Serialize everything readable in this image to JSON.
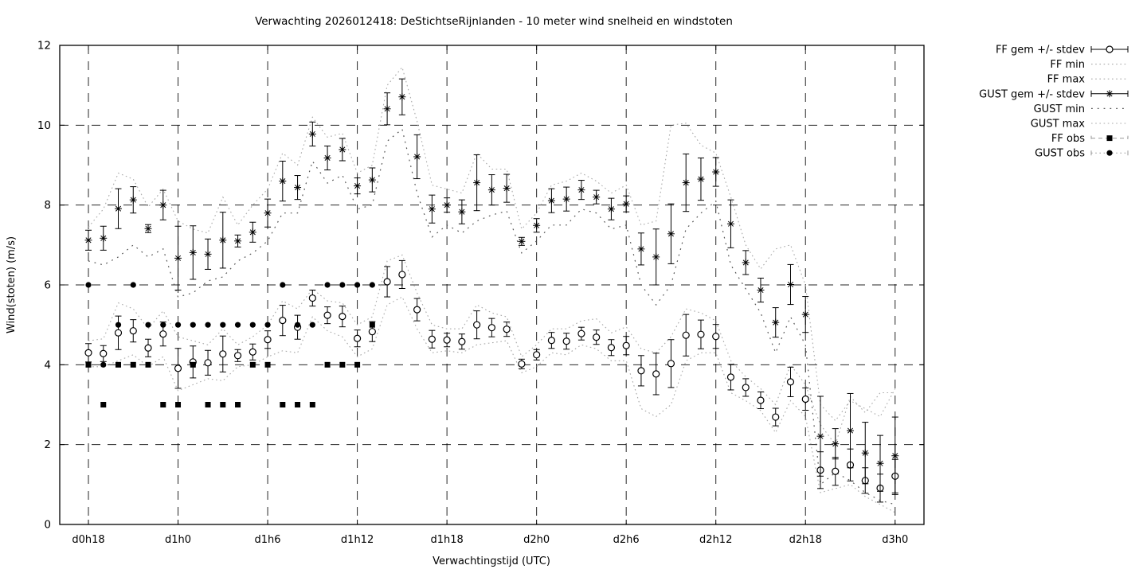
{
  "title": "Verwachting 2026012418: DeStichtseRijnlanden - 10 meter wind snelheid en windstoten",
  "xlabel": "Verwachtingstijd (UTC)",
  "ylabel": "Wind(stoten) (m/s)",
  "colors": {
    "foreground": "#000000",
    "envelope_fine_dotted": "#a8a8a8",
    "envelope_sparse_dotted": "#555555",
    "obs_legend_line": "#999999",
    "background": "#ffffff"
  },
  "legend": [
    {
      "label": "FF gem +/- stdev",
      "type": "errorbar-circle"
    },
    {
      "label": "FF min",
      "type": "dotted-fine"
    },
    {
      "label": "FF max",
      "type": "dotted-fine"
    },
    {
      "label": "GUST gem +/- stdev",
      "type": "errorbar-asterisk"
    },
    {
      "label": "GUST min",
      "type": "dotted-sparse"
    },
    {
      "label": "GUST max",
      "type": "dotted-fine"
    },
    {
      "label": "FF obs",
      "type": "dashed-square"
    },
    {
      "label": "GUST obs",
      "type": "dotted-bullet"
    }
  ],
  "chart_data": {
    "type": "line",
    "subtype": "errorbars-with-envelopes-and-observations",
    "ylim": [
      0,
      12
    ],
    "y_ticks": [
      0,
      2,
      4,
      6,
      8,
      10,
      12
    ],
    "grid": true,
    "legend_position": "outside-top-right",
    "x_ticks": [
      {
        "hour": 18,
        "label": "d0h18"
      },
      {
        "hour": 24,
        "label": "d1h0"
      },
      {
        "hour": 30,
        "label": "d1h6"
      },
      {
        "hour": 36,
        "label": "d1h12"
      },
      {
        "hour": 42,
        "label": "d1h18"
      },
      {
        "hour": 48,
        "label": "d2h0"
      },
      {
        "hour": 54,
        "label": "d2h6"
      },
      {
        "hour": 60,
        "label": "d2h12"
      },
      {
        "hour": 66,
        "label": "d2h18"
      },
      {
        "hour": 72,
        "label": "d3h0"
      }
    ],
    "x_hours": [
      18,
      19,
      20,
      21,
      22,
      23,
      24,
      25,
      26,
      27,
      28,
      29,
      30,
      31,
      32,
      33,
      34,
      35,
      36,
      37,
      38,
      39,
      40,
      41,
      42,
      43,
      44,
      45,
      46,
      47,
      48,
      49,
      50,
      51,
      52,
      53,
      54,
      55,
      56,
      57,
      58,
      59,
      60,
      61,
      62,
      63,
      64,
      65,
      66,
      67,
      68,
      69,
      70,
      71,
      72
    ],
    "series": [
      {
        "name": "FF gem",
        "style": "errorbar-circle",
        "values": [
          4.3,
          4.28,
          4.8,
          4.85,
          4.42,
          4.77,
          3.91,
          4.07,
          4.05,
          4.27,
          4.23,
          4.32,
          4.63,
          5.11,
          4.94,
          5.67,
          5.24,
          5.21,
          4.66,
          4.83,
          6.08,
          6.26,
          5.38,
          4.64,
          4.62,
          4.58,
          5.0,
          4.93,
          4.89,
          4.02,
          4.25,
          4.61,
          4.59,
          4.78,
          4.69,
          4.43,
          4.48,
          3.85,
          3.77,
          4.03,
          4.74,
          4.76,
          4.71,
          3.69,
          3.43,
          3.11,
          2.69,
          3.57,
          3.14,
          1.36,
          1.33,
          1.49,
          1.1,
          0.91,
          1.21
        ],
        "stdev": [
          0.23,
          0.2,
          0.42,
          0.28,
          0.22,
          0.3,
          0.5,
          0.4,
          0.31,
          0.45,
          0.15,
          0.2,
          0.22,
          0.38,
          0.3,
          0.2,
          0.21,
          0.26,
          0.21,
          0.25,
          0.38,
          0.35,
          0.28,
          0.22,
          0.17,
          0.19,
          0.35,
          0.23,
          0.18,
          0.12,
          0.13,
          0.2,
          0.2,
          0.16,
          0.18,
          0.2,
          0.23,
          0.38,
          0.52,
          0.6,
          0.52,
          0.36,
          0.3,
          0.32,
          0.22,
          0.21,
          0.22,
          0.37,
          0.28,
          0.46,
          0.35,
          0.4,
          0.32,
          0.35,
          0.42
        ]
      },
      {
        "name": "FF min",
        "style": "dotted-fine",
        "values": [
          3.95,
          3.95,
          4.1,
          4.25,
          3.95,
          4.2,
          3.35,
          3.5,
          3.65,
          3.6,
          3.95,
          4.0,
          4.2,
          4.35,
          4.3,
          5.2,
          4.85,
          4.7,
          4.2,
          4.4,
          5.5,
          5.7,
          4.9,
          4.3,
          4.35,
          4.3,
          4.5,
          4.55,
          4.6,
          3.8,
          3.95,
          4.3,
          4.25,
          4.5,
          4.4,
          4.1,
          4.1,
          2.9,
          2.7,
          3.0,
          4.1,
          4.3,
          4.3,
          3.3,
          3.1,
          2.85,
          2.3,
          3.1,
          2.7,
          0.8,
          0.9,
          1.0,
          0.7,
          0.5,
          0.3
        ]
      },
      {
        "name": "FF max",
        "style": "dotted-fine",
        "values": [
          4.6,
          4.65,
          5.55,
          5.4,
          4.9,
          5.35,
          4.7,
          4.6,
          4.5,
          4.9,
          4.5,
          4.7,
          5.0,
          5.6,
          5.4,
          5.9,
          5.6,
          5.55,
          5.0,
          5.2,
          6.6,
          6.75,
          5.8,
          5.0,
          4.9,
          4.9,
          5.5,
          5.3,
          5.2,
          4.2,
          4.5,
          4.9,
          4.9,
          5.1,
          5.15,
          4.8,
          4.95,
          4.4,
          4.3,
          4.7,
          5.4,
          5.3,
          5.1,
          4.1,
          3.7,
          3.4,
          3.0,
          4.0,
          3.5,
          2.5,
          2.0,
          3.2,
          2.8,
          3.3,
          3.3
        ]
      },
      {
        "name": "GUST gem",
        "style": "errorbar-asterisk",
        "values": [
          7.12,
          7.17,
          7.91,
          8.13,
          7.41,
          8.0,
          6.67,
          6.81,
          6.77,
          7.12,
          7.1,
          7.32,
          7.8,
          8.6,
          8.44,
          9.78,
          9.18,
          9.39,
          8.48,
          8.63,
          10.41,
          10.71,
          9.21,
          7.9,
          8.0,
          7.83,
          8.56,
          8.38,
          8.42,
          7.09,
          7.49,
          8.11,
          8.15,
          8.38,
          8.2,
          7.9,
          8.03,
          6.9,
          6.7,
          7.28,
          8.56,
          8.65,
          8.83,
          7.53,
          6.56,
          5.87,
          5.06,
          6.01,
          5.26,
          2.21,
          2.02,
          2.35,
          1.79,
          1.53,
          1.72
        ],
        "stdev": [
          0.25,
          0.3,
          0.5,
          0.33,
          0.1,
          0.37,
          0.8,
          0.67,
          0.38,
          0.7,
          0.15,
          0.25,
          0.35,
          0.5,
          0.3,
          0.3,
          0.3,
          0.28,
          0.2,
          0.3,
          0.4,
          0.45,
          0.55,
          0.35,
          0.18,
          0.3,
          0.7,
          0.38,
          0.35,
          0.1,
          0.17,
          0.3,
          0.3,
          0.24,
          0.17,
          0.27,
          0.2,
          0.4,
          0.7,
          0.75,
          0.72,
          0.53,
          0.36,
          0.6,
          0.3,
          0.3,
          0.37,
          0.5,
          0.45,
          1.0,
          0.38,
          0.93,
          0.77,
          0.7,
          0.97
        ]
      },
      {
        "name": "GUST min",
        "style": "dotted-sparse",
        "values": [
          6.6,
          6.5,
          6.7,
          7.0,
          6.7,
          6.9,
          5.7,
          5.8,
          6.1,
          6.2,
          6.6,
          6.8,
          7.1,
          7.8,
          7.8,
          9.1,
          8.55,
          8.75,
          7.9,
          8.0,
          9.6,
          9.9,
          8.3,
          7.2,
          7.5,
          7.3,
          7.6,
          7.75,
          7.85,
          6.8,
          7.1,
          7.5,
          7.5,
          7.9,
          7.8,
          7.4,
          7.5,
          6.0,
          5.5,
          6.0,
          7.4,
          7.8,
          8.1,
          6.5,
          5.9,
          5.3,
          4.3,
          5.2,
          4.5,
          1.0,
          1.3,
          1.1,
          0.8,
          0.6,
          0.5
        ]
      },
      {
        "name": "GUST max",
        "style": "dotted-fine",
        "values": [
          7.45,
          7.9,
          8.8,
          8.65,
          7.95,
          8.4,
          7.6,
          7.4,
          7.3,
          8.2,
          7.5,
          8.0,
          8.4,
          9.3,
          9.0,
          10.2,
          9.7,
          9.8,
          8.8,
          9.0,
          11.0,
          11.45,
          10.1,
          8.5,
          8.4,
          8.3,
          9.3,
          8.9,
          8.9,
          7.4,
          7.8,
          8.5,
          8.6,
          8.8,
          8.6,
          8.3,
          8.5,
          7.5,
          7.6,
          10.0,
          10.05,
          9.5,
          9.3,
          8.2,
          7.0,
          6.4,
          6.9,
          7.0,
          6.0,
          3.0,
          2.6,
          3.1,
          2.9,
          2.7,
          3.4
        ]
      },
      {
        "name": "FF obs",
        "style": "filled-square",
        "x": [
          18,
          19,
          20,
          21,
          22,
          23,
          24,
          25,
          26,
          27,
          28,
          29,
          30,
          31,
          32,
          33,
          34,
          35,
          36,
          37
        ],
        "values": [
          4,
          3,
          4,
          4,
          4,
          3,
          3,
          4,
          3,
          3,
          3,
          4,
          4,
          3,
          3,
          3,
          4,
          4,
          4,
          5
        ]
      },
      {
        "name": "GUST obs",
        "style": "filled-bullet",
        "x": [
          18,
          19,
          20,
          21,
          22,
          23,
          24,
          25,
          26,
          27,
          28,
          29,
          30,
          31,
          32,
          33,
          34,
          35,
          36,
          37
        ],
        "values": [
          6,
          4,
          5,
          6,
          5,
          5,
          5,
          5,
          5,
          5,
          5,
          5,
          5,
          6,
          5,
          5,
          6,
          6,
          6,
          6
        ]
      }
    ]
  }
}
